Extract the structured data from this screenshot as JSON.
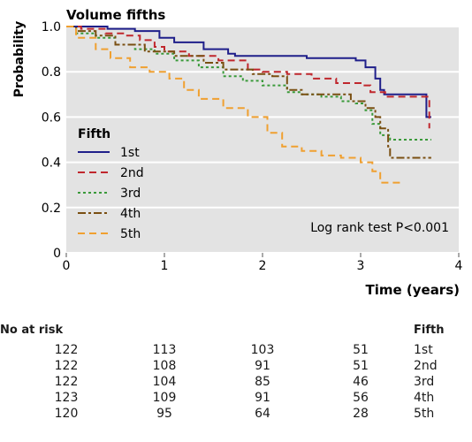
{
  "chart_data": {
    "type": "line",
    "title": "Volume fifths",
    "xlabel": "Time (years)",
    "ylabel": "Probability",
    "xlim": [
      0,
      4
    ],
    "ylim": [
      0,
      1
    ],
    "x_ticks": [
      "0",
      "1",
      "2",
      "3",
      "4"
    ],
    "y_ticks": [
      "0",
      "0.2",
      "0.4",
      "0.6",
      "0.8",
      "1.0"
    ],
    "grid": "horizontal",
    "plot_background": "#e3e3e3",
    "legend": {
      "title": "Fifth",
      "placement": "left",
      "entries": [
        "1st",
        "2nd",
        "3rd",
        "4th",
        "5th"
      ]
    },
    "annotation": "Log rank test P<0.001",
    "series": [
      {
        "name": "1st",
        "color": "#1f1f8a",
        "dash": "solid",
        "points": [
          [
            0,
            1.0
          ],
          [
            0.3,
            1.0
          ],
          [
            0.42,
            0.99
          ],
          [
            0.7,
            0.98
          ],
          [
            0.95,
            0.95
          ],
          [
            1.1,
            0.93
          ],
          [
            1.4,
            0.9
          ],
          [
            1.65,
            0.88
          ],
          [
            1.72,
            0.87
          ],
          [
            2.1,
            0.87
          ],
          [
            2.45,
            0.86
          ],
          [
            2.95,
            0.85
          ],
          [
            3.05,
            0.82
          ],
          [
            3.15,
            0.77
          ],
          [
            3.2,
            0.72
          ],
          [
            3.24,
            0.7
          ],
          [
            3.65,
            0.7
          ],
          [
            3.67,
            0.6
          ],
          [
            3.72,
            0.6
          ]
        ]
      },
      {
        "name": "2nd",
        "color": "#c0272d",
        "dash": "dash",
        "points": [
          [
            0,
            1.0
          ],
          [
            0.15,
            0.99
          ],
          [
            0.4,
            0.97
          ],
          [
            0.6,
            0.96
          ],
          [
            0.75,
            0.94
          ],
          [
            0.9,
            0.91
          ],
          [
            1.0,
            0.89
          ],
          [
            1.25,
            0.87
          ],
          [
            1.55,
            0.85
          ],
          [
            1.85,
            0.81
          ],
          [
            2.0,
            0.8
          ],
          [
            2.25,
            0.79
          ],
          [
            2.5,
            0.77
          ],
          [
            2.75,
            0.75
          ],
          [
            3.0,
            0.74
          ],
          [
            3.1,
            0.71
          ],
          [
            3.25,
            0.69
          ],
          [
            3.55,
            0.69
          ],
          [
            3.68,
            0.69
          ],
          [
            3.7,
            0.55
          ]
        ]
      },
      {
        "name": "3rd",
        "color": "#3a9a3a",
        "dash": "dot",
        "points": [
          [
            0,
            1.0
          ],
          [
            0.1,
            0.97
          ],
          [
            0.3,
            0.95
          ],
          [
            0.5,
            0.92
          ],
          [
            0.7,
            0.9
          ],
          [
            0.9,
            0.88
          ],
          [
            1.1,
            0.85
          ],
          [
            1.35,
            0.82
          ],
          [
            1.6,
            0.78
          ],
          [
            1.8,
            0.76
          ],
          [
            2.0,
            0.74
          ],
          [
            2.25,
            0.71
          ],
          [
            2.4,
            0.7
          ],
          [
            2.6,
            0.69
          ],
          [
            2.8,
            0.67
          ],
          [
            2.95,
            0.66
          ],
          [
            3.05,
            0.63
          ],
          [
            3.12,
            0.57
          ],
          [
            3.2,
            0.52
          ],
          [
            3.3,
            0.5
          ],
          [
            3.72,
            0.5
          ]
        ]
      },
      {
        "name": "4th",
        "color": "#7a4f12",
        "dash": "dashdot",
        "points": [
          [
            0,
            1.0
          ],
          [
            0.1,
            0.98
          ],
          [
            0.3,
            0.96
          ],
          [
            0.5,
            0.92
          ],
          [
            0.8,
            0.89
          ],
          [
            1.1,
            0.87
          ],
          [
            1.4,
            0.84
          ],
          [
            1.6,
            0.81
          ],
          [
            1.9,
            0.79
          ],
          [
            2.1,
            0.78
          ],
          [
            2.25,
            0.72
          ],
          [
            2.4,
            0.7
          ],
          [
            2.7,
            0.7
          ],
          [
            2.9,
            0.67
          ],
          [
            3.05,
            0.64
          ],
          [
            3.15,
            0.6
          ],
          [
            3.2,
            0.55
          ],
          [
            3.28,
            0.47
          ],
          [
            3.3,
            0.42
          ],
          [
            3.72,
            0.42
          ]
        ]
      },
      {
        "name": "5th",
        "color": "#f0a030",
        "dash": "dash",
        "points": [
          [
            0,
            1.0
          ],
          [
            0.1,
            0.95
          ],
          [
            0.3,
            0.9
          ],
          [
            0.45,
            0.86
          ],
          [
            0.65,
            0.82
          ],
          [
            0.85,
            0.8
          ],
          [
            1.05,
            0.77
          ],
          [
            1.2,
            0.72
          ],
          [
            1.35,
            0.68
          ],
          [
            1.6,
            0.64
          ],
          [
            1.85,
            0.6
          ],
          [
            2.05,
            0.53
          ],
          [
            2.2,
            0.47
          ],
          [
            2.4,
            0.45
          ],
          [
            2.6,
            0.43
          ],
          [
            2.8,
            0.42
          ],
          [
            3.0,
            0.4
          ],
          [
            3.12,
            0.36
          ],
          [
            3.2,
            0.31
          ],
          [
            3.4,
            0.31
          ]
        ]
      }
    ]
  },
  "risk_table": {
    "title": "No at risk",
    "group_header": "Fifth",
    "rows": [
      {
        "label": "1st",
        "values": [
          "122",
          "113",
          "103",
          "51"
        ]
      },
      {
        "label": "2nd",
        "values": [
          "122",
          "108",
          "91",
          "51"
        ]
      },
      {
        "label": "3rd",
        "values": [
          "122",
          "104",
          "85",
          "46"
        ]
      },
      {
        "label": "4th",
        "values": [
          "123",
          "109",
          "91",
          "56"
        ]
      },
      {
        "label": "5th",
        "values": [
          "120",
          "95",
          "64",
          "28"
        ]
      }
    ]
  }
}
